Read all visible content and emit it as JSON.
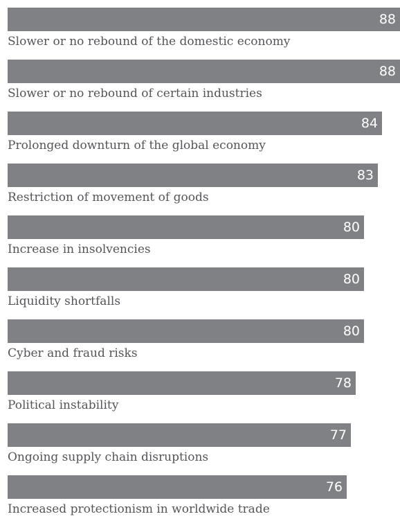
{
  "chart_data": {
    "type": "bar",
    "orientation": "horizontal",
    "categories": [
      "Slower or no rebound of the domestic economy",
      "Slower or no rebound of certain industries",
      "Prolonged downturn of the global economy",
      "Restriction of movement of goods",
      "Increase in insolvencies",
      "Liquidity shortfalls",
      "Cyber and fraud risks",
      "Political instability",
      "Ongoing supply chain disruptions",
      "Increased protectionism in worldwide trade"
    ],
    "values": [
      88,
      88,
      84,
      83,
      80,
      80,
      80,
      78,
      77,
      76
    ],
    "value_labels": [
      "88",
      "88",
      "84",
      "83",
      "80",
      "80",
      "80",
      "78",
      "77",
      "76"
    ],
    "xlim": [
      0,
      88
    ],
    "title": "",
    "xlabel": "",
    "ylabel": "",
    "grid": false,
    "legend": "none",
    "colors": {
      "bar": "#808185",
      "value_text": "#ffffff",
      "label_text": "#555559"
    }
  }
}
